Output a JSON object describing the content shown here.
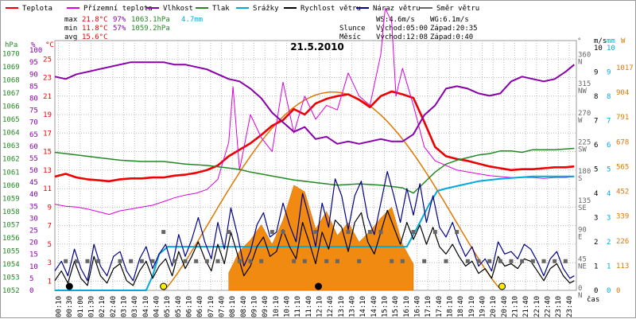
{
  "title": "21.5.2010",
  "legend": [
    {
      "label": "Teplota",
      "color": "#ee0000"
    },
    {
      "label": "Přízemní teplota",
      "color": "#dd00dd"
    },
    {
      "label": "Vlhkost",
      "color": "#8800aa"
    },
    {
      "label": "Tlak",
      "color": "#228822"
    },
    {
      "label": "Srážky",
      "color": "#00aadd"
    },
    {
      "label": "Rychlost větru",
      "color": "#000000"
    },
    {
      "label": "Náraz větru",
      "color": "#000088"
    },
    {
      "label": "Směr větru",
      "color": "#666666"
    }
  ],
  "stats": {
    "max_label": "max",
    "max_temp": "21.8°C",
    "max_hum": "97%",
    "max_press": "1063.1hPa",
    "rain_total": "4.7mm",
    "min_label": "min",
    "min_temp": "11.8°C",
    "min_hum": "57%",
    "min_press": "1059.2hPa",
    "avg_label": "avg",
    "avg_temp": "15.6°C"
  },
  "wind_info": {
    "ws": "WS:4.6m/s",
    "wg": "WG:6.1m/s"
  },
  "sun": {
    "label": "Slunce",
    "rise": "Východ:05:00",
    "set": "Západ:20:35"
  },
  "moon": {
    "label": "Měsíc",
    "rise": "Východ:12:08",
    "set": "Západ:0:40"
  },
  "axis_units": {
    "hpa": "hPa",
    "percent": "%",
    "celsius": "°C",
    "degree": "°",
    "ms": "m/s",
    "mm": "mm",
    "watt": "W",
    "time": "čas"
  },
  "axes": {
    "hpa": [
      "1070",
      "1069",
      "1068",
      "1067",
      "1066",
      "1065",
      "1064",
      "1063",
      "1062",
      "1061",
      "1060",
      "1059",
      "1058",
      "1057",
      "1056",
      "1055",
      "1054",
      "1053",
      "1052"
    ],
    "percent": [
      "100",
      "95",
      "90",
      "85",
      "80",
      "75",
      "70",
      "65",
      "60",
      "55",
      "50",
      "45",
      "40",
      "35",
      "30",
      "25",
      "20",
      "15",
      "10",
      "5",
      "0"
    ],
    "celsius": [
      "25",
      "23",
      "21",
      "19",
      "17",
      "15",
      "13",
      "11",
      "9",
      "7",
      "5",
      "3",
      "1"
    ],
    "direction": [
      "360 N",
      "315 NW",
      "270 W",
      "225 SW",
      "180 S",
      "135 SE",
      "90 E",
      "45 NE",
      "0 N"
    ],
    "ms": [
      "10",
      "9",
      "8",
      "7",
      "6",
      "5",
      "4",
      "3",
      "2",
      "1",
      "0"
    ],
    "watt": [
      "1017",
      "904",
      "791",
      "678",
      "565",
      "452",
      "339",
      "226",
      "113",
      "0"
    ],
    "time": [
      "00:10",
      "00:30",
      "01:00",
      "01:30",
      "02:10",
      "02:40",
      "03:10",
      "03:40",
      "04:10",
      "04:40",
      "05:10",
      "05:40",
      "06:10",
      "06:40",
      "07:10",
      "07:40",
      "08:10",
      "08:40",
      "09:10",
      "09:40",
      "10:10",
      "10:40",
      "11:10",
      "11:40",
      "12:10",
      "12:40",
      "13:10",
      "13:40",
      "14:10",
      "14:40",
      "15:10",
      "15:40",
      "16:10",
      "16:40",
      "17:10",
      "17:40",
      "18:10",
      "18:40",
      "19:10",
      "19:40",
      "20:10",
      "20:40",
      "21:10",
      "21:40",
      "22:10",
      "22:40",
      "23:10",
      "23:40"
    ]
  },
  "chart_data": {
    "type": "line",
    "title": "21.5.2010",
    "x_unit": "hour of day",
    "sunrise_hour": 5.0,
    "sunset_hour": 20.58,
    "series": [
      {
        "name": "Teplota",
        "unit": "°C",
        "color": "#ee0000",
        "x": [
          0,
          0.5,
          1,
          1.5,
          2,
          2.5,
          3,
          3.5,
          4,
          4.5,
          5,
          5.5,
          6,
          6.5,
          7,
          7.5,
          8,
          8.5,
          9,
          9.5,
          10,
          10.5,
          11,
          11.5,
          12,
          12.5,
          13,
          13.5,
          14,
          14.5,
          15,
          15.5,
          16,
          16.5,
          17,
          17.5,
          18,
          18.5,
          19,
          19.5,
          20,
          20.5,
          21,
          21.5,
          22,
          22.5,
          23,
          23.5,
          23.9
        ],
        "values": [
          12.3,
          12.6,
          12.2,
          12.0,
          11.9,
          11.8,
          12.0,
          12.1,
          12.1,
          12.2,
          12.2,
          12.4,
          12.5,
          12.7,
          13.0,
          13.5,
          14.5,
          15.2,
          15.9,
          16.8,
          17.8,
          18.4,
          19.6,
          19.0,
          20.2,
          20.7,
          21.0,
          21.2,
          20.6,
          19.8,
          21.0,
          21.5,
          21.2,
          20.8,
          18.2,
          15.5,
          14.5,
          14.2,
          14.0,
          13.7,
          13.4,
          13.2,
          13.0,
          13.1,
          13.1,
          13.2,
          13.3,
          13.3,
          13.4
        ]
      },
      {
        "name": "Přízemní teplota",
        "unit": "°C",
        "color": "#dd00dd",
        "x": [
          0,
          0.5,
          1,
          1.5,
          2,
          2.5,
          3,
          3.5,
          4,
          4.5,
          5,
          5.5,
          6,
          6.5,
          7,
          7.5,
          8,
          8.2,
          8.5,
          9,
          9.5,
          10,
          10.5,
          11,
          11.5,
          12,
          12.5,
          13,
          13.5,
          14,
          14.5,
          15,
          15.2,
          15.5,
          15.7,
          16,
          16.5,
          17,
          17.5,
          18,
          18.5,
          19,
          19.5,
          20,
          20.5,
          21,
          21.5,
          22,
          22.5,
          23,
          23.5,
          23.9
        ],
        "values": [
          9.3,
          9.1,
          9.0,
          8.8,
          8.5,
          8.2,
          8.6,
          8.8,
          9.0,
          9.2,
          9.6,
          10.0,
          10.3,
          10.5,
          10.9,
          12.0,
          16.0,
          22.0,
          13.0,
          19.0,
          16.5,
          15.0,
          22.5,
          17.0,
          21.0,
          18.5,
          20.0,
          19.5,
          23.5,
          21.0,
          20.0,
          25.5,
          30.5,
          29.0,
          21.0,
          24.0,
          20.0,
          15.5,
          14.0,
          13.5,
          13.0,
          12.8,
          12.6,
          12.4,
          12.3,
          12.2,
          12.2,
          12.2,
          12.1,
          12.2,
          12.2,
          12.3
        ]
      },
      {
        "name": "Vlhkost",
        "unit": "%",
        "color": "#8800aa",
        "x": [
          0,
          0.5,
          1,
          1.5,
          2,
          2.5,
          3,
          3.5,
          4,
          4.5,
          5,
          5.5,
          6,
          6.5,
          7,
          7.5,
          8,
          8.5,
          9,
          9.5,
          10,
          10.5,
          11,
          11.5,
          12,
          12.5,
          13,
          13.5,
          14,
          14.5,
          15,
          15.5,
          16,
          16.5,
          17,
          17.5,
          18,
          18.5,
          19,
          19.5,
          20,
          20.5,
          21,
          21.5,
          22,
          22.5,
          23,
          23.5,
          23.9
        ],
        "values": [
          89,
          88,
          90,
          91,
          92,
          93,
          94,
          95,
          95,
          95,
          95,
          94,
          94,
          93,
          92,
          90,
          88,
          87,
          84,
          80,
          74,
          70,
          66,
          68,
          63,
          64,
          61,
          62,
          61,
          62,
          63,
          62,
          62,
          65,
          73,
          77,
          84,
          85,
          84,
          82,
          81,
          82,
          87,
          89,
          88,
          87,
          88,
          91,
          94
        ]
      },
      {
        "name": "Tlak",
        "unit": "hPa",
        "color": "#228822",
        "x": [
          0,
          1,
          2,
          3,
          4,
          5,
          6,
          7,
          8,
          8.5,
          9,
          10,
          11,
          12,
          13,
          14,
          15,
          16,
          16.5,
          17,
          17.5,
          18,
          18.5,
          19,
          19.5,
          20,
          20.5,
          21,
          21.5,
          22,
          23,
          23.9
        ],
        "values": [
          1062.5,
          1062.3,
          1062.1,
          1061.9,
          1061.8,
          1061.8,
          1061.6,
          1061.5,
          1061.3,
          1061.2,
          1061.0,
          1060.7,
          1060.4,
          1060.2,
          1060.0,
          1060.1,
          1060.0,
          1059.8,
          1059.4,
          1060.2,
          1061.0,
          1061.6,
          1061.9,
          1062.1,
          1062.3,
          1062.4,
          1062.6,
          1062.6,
          1062.5,
          1062.7,
          1062.7,
          1062.8
        ]
      },
      {
        "name": "Srážky",
        "unit": "mm",
        "color": "#00aadd",
        "x": [
          0,
          4.2,
          4.5,
          4.8,
          5.2,
          6.5,
          16.2,
          16.8,
          17.2,
          17.6,
          18.0,
          18.5,
          19.5,
          20.5,
          22,
          23.9
        ],
        "values": [
          0,
          0,
          0.6,
          1.5,
          1.8,
          1.8,
          1.8,
          2.8,
          3.5,
          4.1,
          4.2,
          4.3,
          4.5,
          4.6,
          4.7,
          4.7
        ]
      },
      {
        "name": "Rychlost větru",
        "unit": "m/s",
        "color": "#000000",
        "x": [
          0,
          0.3,
          0.6,
          0.9,
          1.2,
          1.5,
          1.8,
          2.1,
          2.4,
          2.7,
          3.0,
          3.3,
          3.6,
          3.9,
          4.2,
          4.5,
          4.8,
          5.1,
          5.4,
          5.7,
          6.0,
          6.3,
          6.6,
          6.9,
          7.2,
          7.5,
          7.8,
          8.1,
          8.4,
          8.7,
          9.0,
          9.3,
          9.6,
          9.9,
          10.2,
          10.5,
          10.8,
          11.1,
          11.4,
          11.7,
          12.0,
          12.3,
          12.6,
          12.9,
          13.2,
          13.5,
          13.8,
          14.1,
          14.4,
          14.7,
          15.0,
          15.3,
          15.6,
          15.9,
          16.2,
          16.5,
          16.8,
          17.1,
          17.4,
          17.7,
          18.0,
          18.3,
          18.6,
          18.9,
          19.2,
          19.5,
          19.8,
          20.1,
          20.4,
          20.7,
          21.0,
          21.3,
          21.6,
          21.9,
          22.2,
          22.5,
          22.8,
          23.1,
          23.4,
          23.7,
          23.9
        ],
        "values": [
          0.4,
          0.8,
          0.3,
          1.2,
          0.5,
          0.2,
          1.4,
          0.6,
          0.3,
          0.9,
          1.1,
          0.4,
          0.2,
          0.8,
          1.2,
          0.5,
          1.0,
          1.3,
          0.6,
          1.6,
          0.9,
          1.4,
          2.0,
          1.3,
          0.8,
          1.9,
          1.1,
          2.4,
          1.5,
          0.6,
          1.0,
          1.8,
          2.2,
          1.4,
          1.6,
          2.5,
          1.8,
          1.3,
          2.8,
          2.0,
          1.1,
          2.4,
          1.7,
          2.9,
          2.6,
          1.6,
          2.8,
          3.2,
          2.0,
          1.5,
          2.4,
          3.3,
          2.6,
          1.9,
          2.8,
          2.1,
          2.7,
          1.9,
          2.6,
          1.8,
          1.5,
          1.9,
          1.4,
          1.0,
          1.2,
          0.7,
          0.9,
          0.5,
          1.4,
          1.0,
          1.1,
          0.9,
          1.3,
          1.2,
          0.8,
          0.4,
          0.9,
          1.1,
          0.6,
          0.3,
          0.4
        ]
      },
      {
        "name": "Náraz větru",
        "unit": "m/s",
        "color": "#000088",
        "x": [
          0,
          0.3,
          0.6,
          0.9,
          1.2,
          1.5,
          1.8,
          2.1,
          2.4,
          2.7,
          3.0,
          3.3,
          3.6,
          3.9,
          4.2,
          4.5,
          4.8,
          5.1,
          5.4,
          5.7,
          6.0,
          6.3,
          6.6,
          6.9,
          7.2,
          7.5,
          7.8,
          8.1,
          8.4,
          8.7,
          9.0,
          9.3,
          9.6,
          9.9,
          10.2,
          10.5,
          10.8,
          11.1,
          11.4,
          11.7,
          12.0,
          12.3,
          12.6,
          12.9,
          13.2,
          13.5,
          13.8,
          14.1,
          14.4,
          14.7,
          15.0,
          15.3,
          15.6,
          15.9,
          16.2,
          16.5,
          16.8,
          17.1,
          17.4,
          17.7,
          18.0,
          18.3,
          18.6,
          18.9,
          19.2,
          19.5,
          19.8,
          20.1,
          20.4,
          20.7,
          21.0,
          21.3,
          21.6,
          21.9,
          22.2,
          22.5,
          22.8,
          23.1,
          23.4,
          23.7,
          23.9
        ],
        "values": [
          0.8,
          1.2,
          0.6,
          1.7,
          0.9,
          0.4,
          1.9,
          1.0,
          0.6,
          1.4,
          1.6,
          0.8,
          0.4,
          1.3,
          1.8,
          0.9,
          1.5,
          1.9,
          1.0,
          2.3,
          1.4,
          2.1,
          3.0,
          2.0,
          1.3,
          2.8,
          1.7,
          3.4,
          2.3,
          1.0,
          1.6,
          2.7,
          3.2,
          2.2,
          2.4,
          3.6,
          2.7,
          2.0,
          4.0,
          3.0,
          1.8,
          3.6,
          2.6,
          4.6,
          3.9,
          2.5,
          3.9,
          4.5,
          3.0,
          2.3,
          3.6,
          4.9,
          3.9,
          2.8,
          4.2,
          3.1,
          4.4,
          2.8,
          3.9,
          2.6,
          2.2,
          2.8,
          2.0,
          1.4,
          1.8,
          1.0,
          1.3,
          0.8,
          2.0,
          1.5,
          1.6,
          1.3,
          1.9,
          1.7,
          1.2,
          0.6,
          1.3,
          1.6,
          0.9,
          0.5,
          0.6
        ]
      },
      {
        "name": "Směr větru",
        "unit": "°",
        "color": "#666666",
        "x": [
          0.5,
          1,
          1.5,
          2,
          3,
          3.5,
          4,
          4.5,
          5,
          5.5,
          6,
          6.5,
          7,
          7.5,
          8,
          8.5,
          9,
          9.5,
          10,
          10.5,
          11,
          11.5,
          12,
          12.5,
          13,
          13.5,
          14,
          14.5,
          15,
          15.5,
          16,
          16.5,
          17,
          17.5,
          18,
          18.5,
          19,
          19.5,
          20,
          20.5,
          21,
          21.5,
          22,
          22.5,
          23,
          23.5
        ],
        "values": [
          45,
          45,
          45,
          45,
          45,
          45,
          45,
          45,
          90,
          45,
          45,
          45,
          45,
          45,
          90,
          45,
          45,
          45,
          90,
          90,
          45,
          45,
          90,
          45,
          45,
          90,
          45,
          90,
          90,
          45,
          45,
          90,
          45,
          90,
          45,
          90,
          45,
          45,
          45,
          45,
          45,
          45,
          45,
          45,
          45,
          45
        ]
      }
    ],
    "solar_radiation": {
      "unit": "W",
      "x": [
        8.0,
        8.5,
        9.0,
        9.5,
        10.0,
        10.5,
        11.0,
        11.5,
        12.0,
        12.5,
        13.0,
        13.5,
        14.0,
        14.5,
        15.0,
        15.5,
        16.0,
        16.5
      ],
      "values": [
        80,
        180,
        230,
        300,
        210,
        320,
        480,
        450,
        280,
        360,
        250,
        310,
        220,
        270,
        330,
        380,
        210,
        120
      ]
    },
    "clear_sky_radiation": {
      "unit": "W",
      "peak": 905,
      "peak_hour": 12.8
    }
  }
}
